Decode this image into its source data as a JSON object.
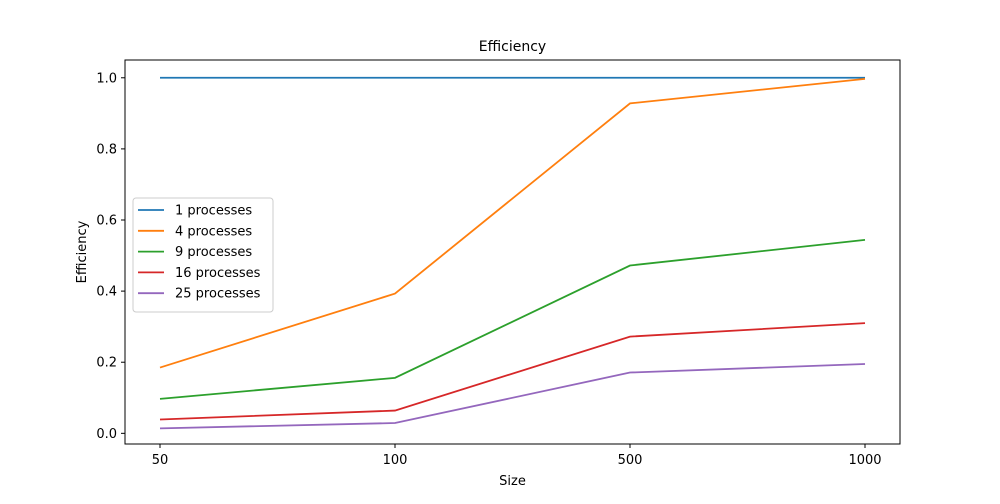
{
  "chart_data": {
    "type": "line",
    "title": "Efficiency",
    "xlabel": "Size",
    "ylabel": "Efficiency",
    "categories": [
      "50",
      "100",
      "500",
      "1000"
    ],
    "yticks": [
      "0.0",
      "0.2",
      "0.4",
      "0.6",
      "0.8",
      "1.0"
    ],
    "ytick_values": [
      0.0,
      0.2,
      0.4,
      0.6,
      0.8,
      1.0
    ],
    "ylim": [
      -0.03,
      1.05
    ],
    "grid": false,
    "legend_position": "center-left",
    "series": [
      {
        "name": "1 processes",
        "color": "#1f77b4",
        "values": [
          1.0,
          1.0,
          1.0,
          1.0
        ]
      },
      {
        "name": "4 processes",
        "color": "#ff7f0e",
        "values": [
          0.185,
          0.393,
          0.928,
          0.997
        ]
      },
      {
        "name": "9 processes",
        "color": "#2ca02c",
        "values": [
          0.097,
          0.156,
          0.472,
          0.544
        ]
      },
      {
        "name": "16 processes",
        "color": "#d62728",
        "values": [
          0.039,
          0.064,
          0.272,
          0.31
        ]
      },
      {
        "name": "25 processes",
        "color": "#9467bd",
        "values": [
          0.014,
          0.029,
          0.171,
          0.195
        ]
      }
    ]
  }
}
